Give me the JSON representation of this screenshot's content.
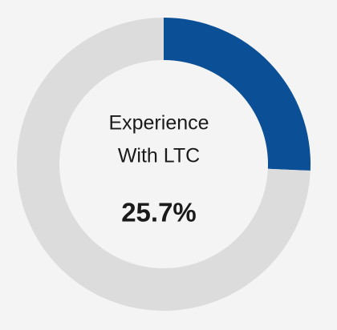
{
  "chart_data": {
    "type": "donut",
    "center_label": [
      "Experience",
      "With LTC"
    ],
    "categories": [
      "Experience With LTC",
      null
    ],
    "values": [
      25.7,
      74.3
    ],
    "value_labels": [
      "25.7%",
      null
    ],
    "colors": [
      "#0b4f96",
      "#dcdcdc"
    ]
  }
}
